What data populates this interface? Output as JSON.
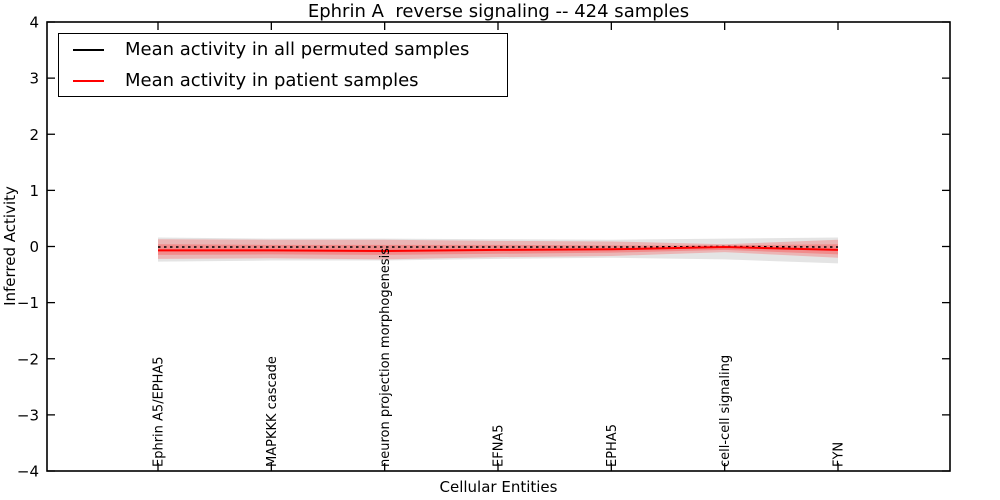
{
  "chart_data": {
    "type": "line",
    "title": "Ephrin A  reverse signaling -- 424 samples",
    "xlabel": "Cellular Entities",
    "ylabel": "Inferred Activity",
    "ylim": [
      -4,
      4
    ],
    "grid": false,
    "legend_position": "upper left",
    "yticks": [
      {
        "label": "4",
        "value": 4
      },
      {
        "label": "3",
        "value": 3
      },
      {
        "label": "2",
        "value": 2
      },
      {
        "label": "1",
        "value": 1
      },
      {
        "label": "0",
        "value": 0
      },
      {
        "label": "−1",
        "value": -1
      },
      {
        "label": "−2",
        "value": -2
      },
      {
        "label": "−3",
        "value": -3
      },
      {
        "label": "−4",
        "value": -4
      }
    ],
    "categories": [
      "Ephrin A5/EPHA5",
      "MAPKKK cascade",
      "neuron projection morphogenesis",
      "EFNA5",
      "EPHA5",
      "cell-cell signaling",
      "FYN"
    ],
    "series": [
      {
        "name": "Mean activity in all permuted samples",
        "color": "#000000",
        "line_style": "dashed",
        "values": [
          -0.01,
          -0.01,
          -0.01,
          -0.01,
          -0.01,
          0.0,
          -0.01
        ]
      },
      {
        "name": "Mean activity in patient samples",
        "color": "#ff0000",
        "line_style": "solid",
        "values": [
          -0.07,
          -0.07,
          -0.08,
          -0.06,
          -0.05,
          -0.01,
          -0.06
        ]
      }
    ],
    "bands": [
      {
        "name": "permuted-samples-std-band",
        "color": "rgba(130,130,130,0.22)",
        "upper": [
          0.16,
          0.14,
          0.14,
          0.13,
          0.12,
          0.14,
          0.16
        ],
        "lower": [
          -0.27,
          -0.25,
          -0.25,
          -0.22,
          -0.2,
          -0.23,
          -0.3
        ]
      },
      {
        "name": "patient-samples-std-outer-band",
        "color": "rgba(255,45,45,0.26)",
        "upper": [
          0.13,
          0.12,
          0.12,
          0.1,
          0.09,
          0.04,
          0.12
        ],
        "lower": [
          -0.22,
          -0.21,
          -0.23,
          -0.19,
          -0.17,
          -0.1,
          -0.2
        ]
      },
      {
        "name": "patient-samples-std-inner-band",
        "color": "rgba(255,45,45,0.30)",
        "upper": [
          0.04,
          0.03,
          0.03,
          0.03,
          0.02,
          0.02,
          0.04
        ],
        "lower": [
          -0.15,
          -0.14,
          -0.15,
          -0.13,
          -0.11,
          -0.06,
          -0.14
        ]
      }
    ],
    "legend": {
      "entries": [
        {
          "label": "Mean activity in all permuted samples",
          "color": "#000000"
        },
        {
          "label": "Mean activity in patient samples",
          "color": "#ff0000"
        }
      ]
    }
  },
  "colors": {
    "background": "#ffffff",
    "axis": "#000000",
    "patient_line": "#ff0000",
    "permuted_line": "#000000"
  }
}
